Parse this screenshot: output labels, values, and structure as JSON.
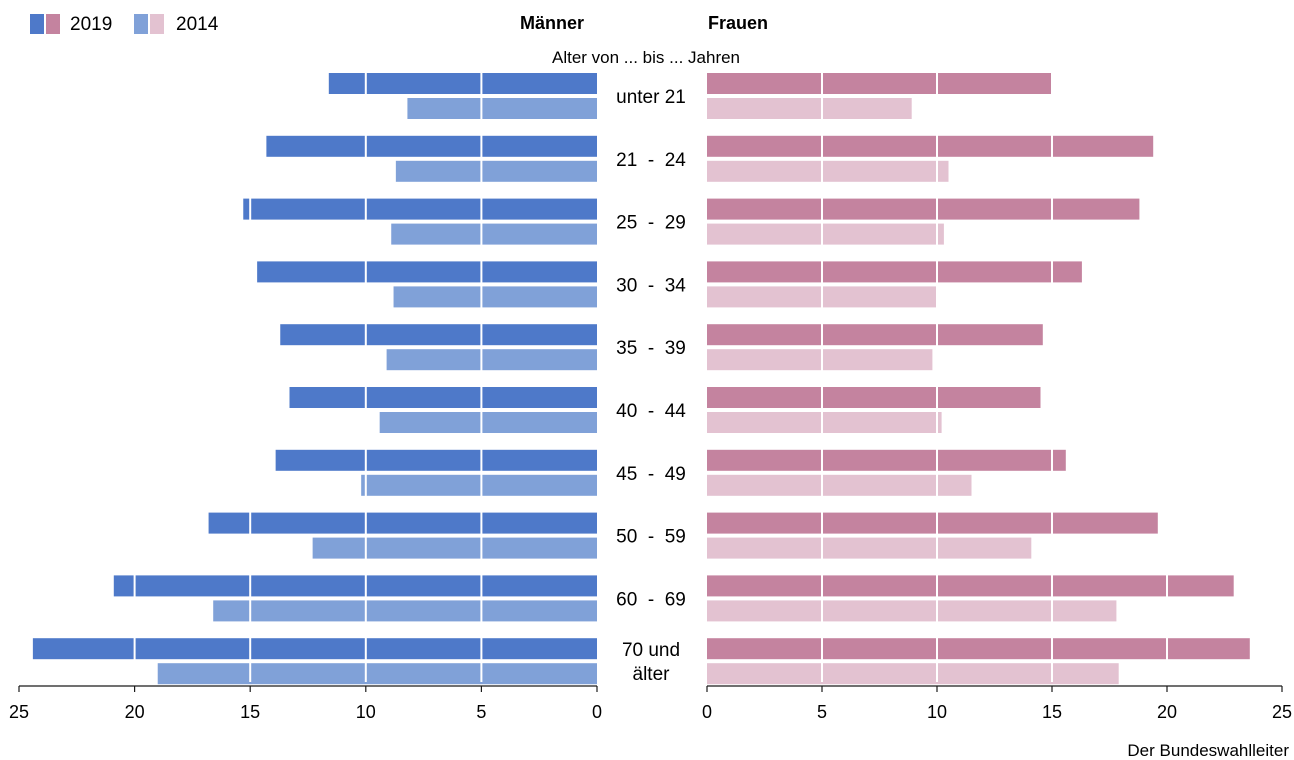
{
  "legend": {
    "items": [
      {
        "label": "2019",
        "colors": [
          "#4e79c9",
          "#c4839f"
        ]
      },
      {
        "label": "2014",
        "colors": [
          "#80a1d8",
          "#e3c2d1"
        ]
      }
    ]
  },
  "headers": {
    "left": "Männer",
    "right": "Frauen",
    "category_title": "Alter von ... bis ... Jahren"
  },
  "source": "Der Bundeswahlleiter",
  "chart_data": {
    "type": "bar",
    "orientation": "horizontal",
    "layout": "butterfly",
    "categories": [
      [
        "unter 21"
      ],
      [
        "21  -  24"
      ],
      [
        "25  -  29"
      ],
      [
        "30  -  34"
      ],
      [
        "35  -  39"
      ],
      [
        "40  -  44"
      ],
      [
        "45  -  49"
      ],
      [
        "50  -  59"
      ],
      [
        "60  -  69"
      ],
      [
        "70 und",
        "älter"
      ]
    ],
    "panels": [
      {
        "name": "Männer",
        "direction": "left",
        "xlim": [
          0,
          25
        ],
        "ticks": [
          0,
          5,
          10,
          15,
          20,
          25
        ],
        "series": [
          {
            "name": "2019",
            "color": "#4e79c9",
            "values": [
              11.6,
              14.3,
              15.3,
              14.7,
              13.7,
              13.3,
              13.9,
              16.8,
              20.9,
              24.4
            ]
          },
          {
            "name": "2014",
            "color": "#80a1d8",
            "values": [
              8.2,
              8.7,
              8.9,
              8.8,
              9.1,
              9.4,
              10.2,
              12.3,
              16.6,
              19.0
            ]
          }
        ]
      },
      {
        "name": "Frauen",
        "direction": "right",
        "xlim": [
          0,
          25
        ],
        "ticks": [
          0,
          5,
          10,
          15,
          20,
          25
        ],
        "series": [
          {
            "name": "2019",
            "color": "#c4839f",
            "values": [
              15.0,
              19.4,
              18.8,
              16.3,
              14.6,
              14.5,
              15.6,
              19.6,
              22.9,
              23.6
            ]
          },
          {
            "name": "2014",
            "color": "#e3c2d1",
            "values": [
              8.9,
              10.5,
              10.3,
              10.0,
              9.8,
              10.2,
              11.5,
              14.1,
              17.8,
              17.9
            ]
          }
        ]
      }
    ],
    "grid": "vertical white lines at tick positions",
    "legend_position": "top-left"
  }
}
